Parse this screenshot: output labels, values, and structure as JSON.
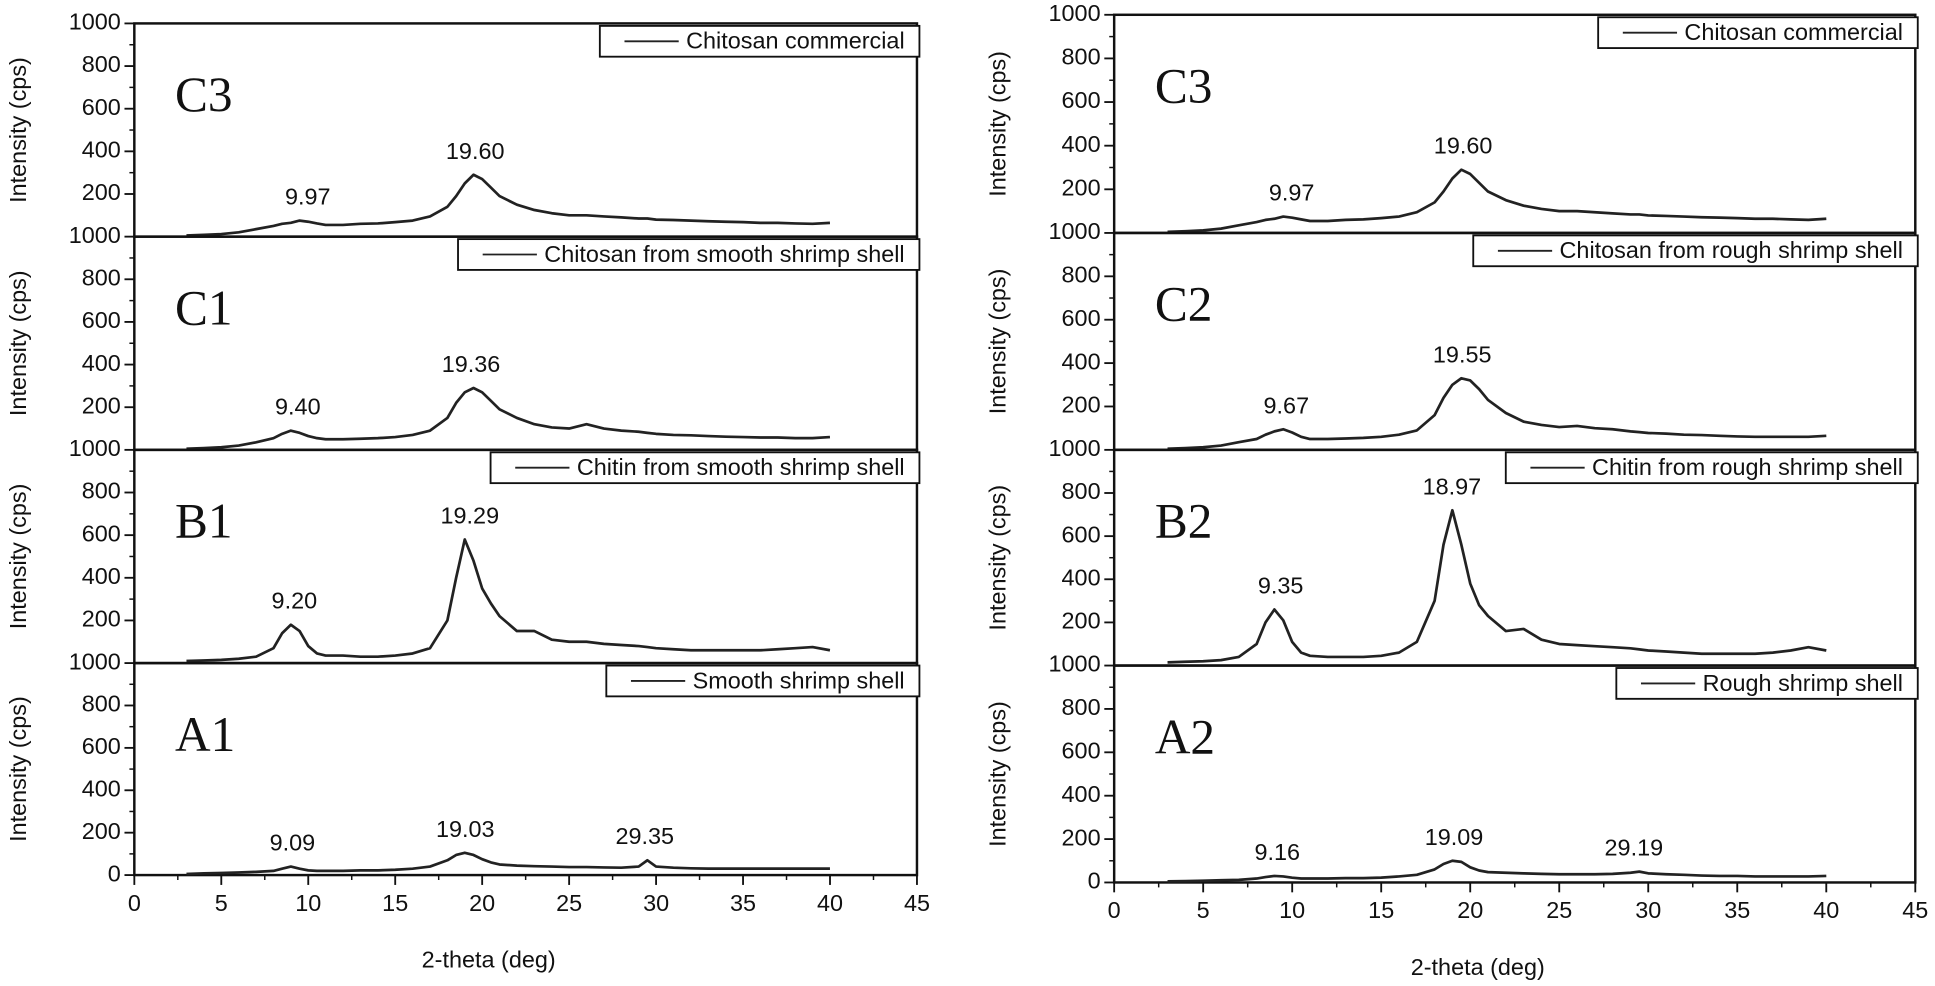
{
  "chart_data": [
    {
      "type": "line",
      "label": "C3",
      "ylabel": "Intensity (cps)",
      "xlim": [
        0,
        45
      ],
      "ylim": [
        0,
        1000
      ],
      "yticks": [
        200,
        400,
        600,
        800,
        1000
      ],
      "legend": "upper right",
      "x": [
        3,
        4,
        5,
        6,
        7,
        8,
        8.5,
        9,
        9.5,
        10,
        10.5,
        11,
        12,
        13,
        14,
        15,
        16,
        17,
        18,
        18.5,
        19,
        19.5,
        20,
        20.5,
        21,
        22,
        23,
        24,
        25,
        26,
        27,
        28,
        29,
        29.5,
        30,
        31,
        32,
        33,
        34,
        35,
        36,
        37,
        38,
        39,
        40
      ],
      "series": [
        {
          "name": "Chitosan commercial",
          "color": "#222222",
          "values": [
            5,
            8,
            12,
            20,
            35,
            50,
            60,
            65,
            75,
            70,
            62,
            55,
            55,
            60,
            62,
            68,
            75,
            95,
            140,
            190,
            250,
            290,
            270,
            230,
            190,
            150,
            125,
            110,
            100,
            100,
            95,
            90,
            85,
            85,
            80,
            78,
            75,
            72,
            70,
            68,
            65,
            65,
            62,
            60,
            65
          ]
        }
      ],
      "peaks": [
        "9.97",
        "19.60"
      ]
    },
    {
      "type": "line",
      "label": "C1",
      "ylabel": "Intensity (cps)",
      "xlim": [
        0,
        45
      ],
      "ylim": [
        0,
        1000
      ],
      "yticks": [
        200,
        400,
        600,
        800,
        1000
      ],
      "legend": "upper right",
      "x": [
        3,
        4,
        5,
        6,
        7,
        8,
        8.5,
        9,
        9.5,
        10,
        10.5,
        11,
        12,
        13,
        14,
        15,
        16,
        17,
        18,
        18.5,
        19,
        19.5,
        20,
        20.5,
        21,
        22,
        23,
        24,
        25,
        26,
        27,
        28,
        29,
        29.5,
        30,
        31,
        32,
        33,
        34,
        35,
        36,
        37,
        38,
        39,
        40
      ],
      "series": [
        {
          "name": "Chitosan from smooth shrimp shell",
          "color": "#222222",
          "values": [
            5,
            8,
            12,
            20,
            35,
            55,
            75,
            90,
            80,
            65,
            55,
            50,
            50,
            52,
            55,
            60,
            70,
            90,
            150,
            220,
            270,
            290,
            270,
            230,
            190,
            150,
            120,
            105,
            100,
            120,
            100,
            90,
            85,
            80,
            75,
            70,
            68,
            65,
            62,
            60,
            58,
            58,
            55,
            55,
            60
          ]
        }
      ],
      "peaks": [
        "9.40",
        "19.36"
      ]
    },
    {
      "type": "line",
      "label": "B1",
      "ylabel": "Intensity (cps)",
      "xlim": [
        0,
        45
      ],
      "ylim": [
        0,
        1000
      ],
      "yticks": [
        200,
        400,
        600,
        800,
        1000
      ],
      "legend": "upper right",
      "x": [
        3,
        4,
        5,
        6,
        7,
        8,
        8.5,
        9,
        9.5,
        10,
        10.5,
        11,
        12,
        13,
        14,
        15,
        16,
        17,
        18,
        18.5,
        19,
        19.5,
        20,
        20.5,
        21,
        22,
        23,
        24,
        25,
        26,
        27,
        28,
        29,
        29.5,
        30,
        31,
        32,
        33,
        34,
        35,
        36,
        37,
        38,
        39,
        40
      ],
      "series": [
        {
          "name": "Chitin from smooth shrimp shell",
          "color": "#222222",
          "values": [
            10,
            12,
            15,
            20,
            30,
            70,
            140,
            180,
            150,
            80,
            45,
            35,
            35,
            30,
            30,
            35,
            45,
            70,
            200,
            400,
            580,
            480,
            350,
            280,
            220,
            150,
            150,
            110,
            100,
            100,
            90,
            85,
            80,
            75,
            70,
            65,
            60,
            60,
            60,
            60,
            60,
            65,
            70,
            75,
            60
          ]
        }
      ],
      "peaks": [
        "9.20",
        "19.29"
      ]
    },
    {
      "type": "line",
      "label": "A1",
      "ylabel": "Intensity (cps)",
      "xlabel": "2-theta (deg)",
      "xlim": [
        0,
        45
      ],
      "xticks": [
        0,
        5,
        10,
        15,
        20,
        25,
        30,
        35,
        40,
        45
      ],
      "ylim": [
        0,
        1000
      ],
      "yticks": [
        0,
        200,
        400,
        600,
        800,
        1000
      ],
      "legend": "upper right",
      "x": [
        3,
        4,
        5,
        6,
        7,
        8,
        8.5,
        9,
        9.5,
        10,
        10.5,
        11,
        12,
        13,
        14,
        15,
        16,
        17,
        18,
        18.5,
        19,
        19.5,
        20,
        20.5,
        21,
        22,
        23,
        24,
        25,
        26,
        27,
        28,
        29,
        29.5,
        30,
        31,
        32,
        33,
        34,
        35,
        36,
        37,
        38,
        39,
        40
      ],
      "series": [
        {
          "name": "Smooth shrimp shell",
          "color": "#222222",
          "values": [
            5,
            8,
            10,
            12,
            15,
            20,
            30,
            40,
            30,
            22,
            20,
            20,
            20,
            22,
            22,
            25,
            30,
            40,
            70,
            95,
            105,
            95,
            75,
            60,
            50,
            45,
            42,
            40,
            38,
            38,
            36,
            35,
            40,
            70,
            40,
            35,
            32,
            30,
            30,
            30,
            30,
            30,
            30,
            30,
            30
          ]
        }
      ],
      "peaks": [
        "9.09",
        "19.03",
        "29.35"
      ]
    },
    {
      "type": "line",
      "label": "C3",
      "ylabel": "Intensity (cps)",
      "xlim": [
        0,
        45
      ],
      "ylim": [
        0,
        1000
      ],
      "yticks": [
        200,
        400,
        600,
        800,
        1000
      ],
      "legend": "upper right",
      "x": [
        3,
        4,
        5,
        6,
        7,
        8,
        8.5,
        9,
        9.5,
        10,
        10.5,
        11,
        12,
        13,
        14,
        15,
        16,
        17,
        18,
        18.5,
        19,
        19.5,
        20,
        20.5,
        21,
        22,
        23,
        24,
        25,
        26,
        27,
        28,
        29,
        29.5,
        30,
        31,
        32,
        33,
        34,
        35,
        36,
        37,
        38,
        39,
        40
      ],
      "series": [
        {
          "name": "Chitosan commercial",
          "color": "#222222",
          "values": [
            5,
            8,
            12,
            20,
            35,
            50,
            60,
            65,
            75,
            70,
            62,
            55,
            55,
            60,
            62,
            68,
            75,
            95,
            140,
            190,
            250,
            290,
            270,
            230,
            190,
            150,
            125,
            110,
            100,
            100,
            95,
            90,
            85,
            85,
            80,
            78,
            75,
            72,
            70,
            68,
            65,
            65,
            62,
            60,
            65
          ]
        }
      ],
      "peaks": [
        "9.97",
        "19.60"
      ]
    },
    {
      "type": "line",
      "label": "C2",
      "ylabel": "Intensity (cps)",
      "xlim": [
        0,
        45
      ],
      "ylim": [
        0,
        1000
      ],
      "yticks": [
        200,
        400,
        600,
        800,
        1000
      ],
      "legend": "upper right",
      "x": [
        3,
        4,
        5,
        6,
        7,
        8,
        8.5,
        9,
        9.5,
        10,
        10.5,
        11,
        12,
        13,
        14,
        15,
        16,
        17,
        18,
        18.5,
        19,
        19.5,
        20,
        20.5,
        21,
        22,
        23,
        24,
        25,
        26,
        27,
        28,
        29,
        29.5,
        30,
        31,
        32,
        33,
        34,
        35,
        36,
        37,
        38,
        39,
        40
      ],
      "series": [
        {
          "name": "Chitosan from rough shrimp shell",
          "color": "#222222",
          "values": [
            5,
            8,
            12,
            20,
            35,
            50,
            70,
            85,
            95,
            80,
            60,
            50,
            50,
            52,
            55,
            60,
            70,
            90,
            160,
            240,
            300,
            330,
            320,
            280,
            230,
            170,
            130,
            115,
            105,
            110,
            100,
            95,
            85,
            82,
            78,
            75,
            70,
            68,
            65,
            62,
            60,
            60,
            60,
            60,
            65
          ]
        }
      ],
      "peaks": [
        "9.67",
        "19.55"
      ]
    },
    {
      "type": "line",
      "label": "B2",
      "ylabel": "Intensity (cps)",
      "xlim": [
        0,
        45
      ],
      "ylim": [
        0,
        1000
      ],
      "yticks": [
        200,
        400,
        600,
        800,
        1000
      ],
      "legend": "upper right",
      "x": [
        3,
        4,
        5,
        6,
        7,
        8,
        8.5,
        9,
        9.5,
        10,
        10.5,
        11,
        12,
        13,
        14,
        15,
        16,
        17,
        18,
        18.5,
        19,
        19.5,
        20,
        20.5,
        21,
        22,
        23,
        24,
        25,
        26,
        27,
        28,
        29,
        29.5,
        30,
        31,
        32,
        33,
        34,
        35,
        36,
        37,
        38,
        39,
        40
      ],
      "series": [
        {
          "name": "Chitin from rough shrimp shell",
          "color": "#222222",
          "values": [
            15,
            18,
            20,
            25,
            40,
            100,
            200,
            260,
            210,
            110,
            60,
            45,
            40,
            40,
            40,
            45,
            60,
            110,
            300,
            560,
            720,
            560,
            380,
            280,
            230,
            160,
            170,
            120,
            100,
            95,
            90,
            85,
            80,
            75,
            70,
            65,
            60,
            55,
            55,
            55,
            55,
            60,
            70,
            85,
            70
          ]
        }
      ],
      "peaks": [
        "9.35",
        "18.97"
      ]
    },
    {
      "type": "line",
      "label": "A2",
      "ylabel": "Intensity (cps)",
      "xlabel": "2-theta (deg)",
      "xlim": [
        0,
        45
      ],
      "xticks": [
        0,
        5,
        10,
        15,
        20,
        25,
        30,
        35,
        40,
        45
      ],
      "ylim": [
        0,
        1000
      ],
      "yticks": [
        0,
        200,
        400,
        600,
        800,
        1000
      ],
      "legend": "upper right",
      "x": [
        3,
        4,
        5,
        6,
        7,
        8,
        8.5,
        9,
        9.5,
        10,
        10.5,
        11,
        12,
        13,
        14,
        15,
        16,
        17,
        18,
        18.5,
        19,
        19.5,
        20,
        20.5,
        21,
        22,
        23,
        24,
        25,
        26,
        27,
        28,
        29,
        29.5,
        30,
        31,
        32,
        33,
        34,
        35,
        36,
        37,
        38,
        39,
        40
      ],
      "series": [
        {
          "name": "Rough shrimp shell",
          "color": "#222222",
          "values": [
            5,
            6,
            8,
            10,
            12,
            18,
            25,
            30,
            28,
            22,
            18,
            18,
            18,
            20,
            20,
            22,
            28,
            35,
            60,
            85,
            100,
            95,
            70,
            55,
            48,
            45,
            42,
            40,
            38,
            38,
            38,
            40,
            45,
            50,
            42,
            38,
            35,
            32,
            30,
            30,
            28,
            28,
            28,
            28,
            30
          ]
        }
      ],
      "peaks": [
        "9.16",
        "19.09",
        "29.19"
      ]
    }
  ]
}
